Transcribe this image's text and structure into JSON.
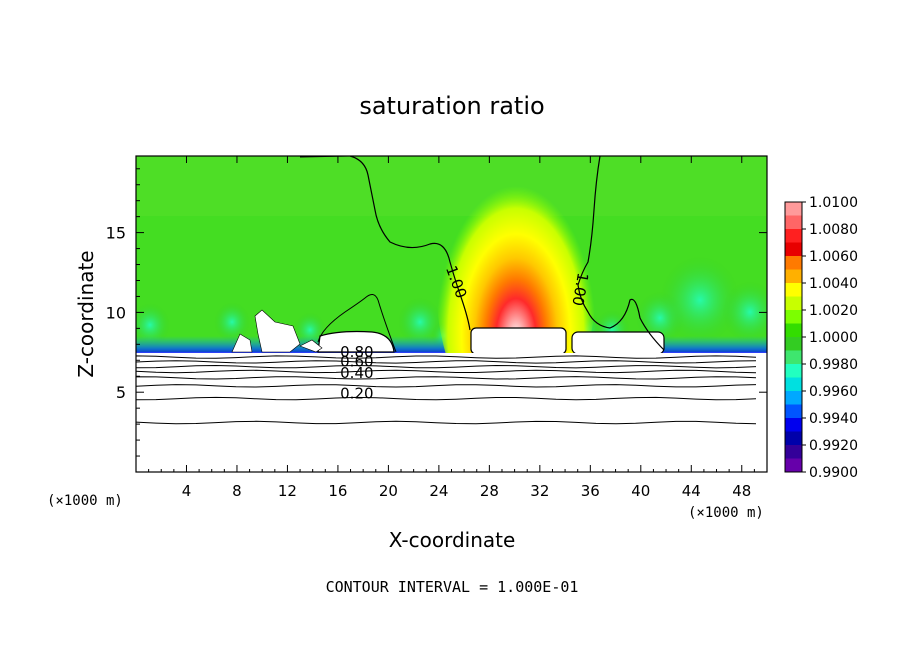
{
  "chart_data": {
    "type": "heatmap",
    "title": "saturation ratio",
    "xlabel": "X-coordinate",
    "ylabel": "Z-coordinate",
    "x_unit": "(×1000 m)",
    "y_unit": "(×1000 m)",
    "xlim": [
      0,
      50
    ],
    "ylim": [
      0,
      19.8
    ],
    "x_ticks": [
      4,
      8,
      12,
      16,
      20,
      24,
      28,
      32,
      36,
      40,
      44,
      48
    ],
    "y_ticks": [
      5,
      10,
      15
    ],
    "footer": "CONTOUR INTERVAL = 1.000E-01",
    "colorbar": {
      "levels": [
        "1.0100",
        "1.0080",
        "1.0060",
        "1.0040",
        "1.0020",
        "1.0000",
        "0.9980",
        "0.9960",
        "0.9940",
        "0.9920",
        "0.9900"
      ],
      "colors": [
        "#ff9a9a",
        "#ff6666",
        "#ff2020",
        "#e80000",
        "#ff7a00",
        "#ffb000",
        "#ffff00",
        "#c8ff00",
        "#7cff00",
        "#33dd00",
        "#33cc22",
        "#3ee66e",
        "#22ffc0",
        "#00e0e0",
        "#00a8ff",
        "#0055ff",
        "#0000ee",
        "#0000aa",
        "#330099",
        "#6600aa"
      ]
    },
    "contour_labels": [
      {
        "text": "1.00",
        "x": 25.0,
        "z": 11.8,
        "rotate": 70
      },
      {
        "text": "1.00",
        "x": 34.8,
        "z": 11.5,
        "rotate": 100
      },
      {
        "text": "0.80",
        "x": 17.5,
        "z": 7.2,
        "rotate": 0
      },
      {
        "text": "0.60",
        "x": 17.5,
        "z": 6.6,
        "rotate": 0
      },
      {
        "text": "0.40",
        "x": 17.5,
        "z": 5.9,
        "rotate": 0
      },
      {
        "text": "0.20",
        "x": 17.5,
        "z": 4.6,
        "rotate": 0
      }
    ],
    "horizontal_contours_z": [
      3.1,
      4.6,
      5.4,
      5.9,
      6.3,
      6.6,
      6.9,
      7.2
    ]
  }
}
